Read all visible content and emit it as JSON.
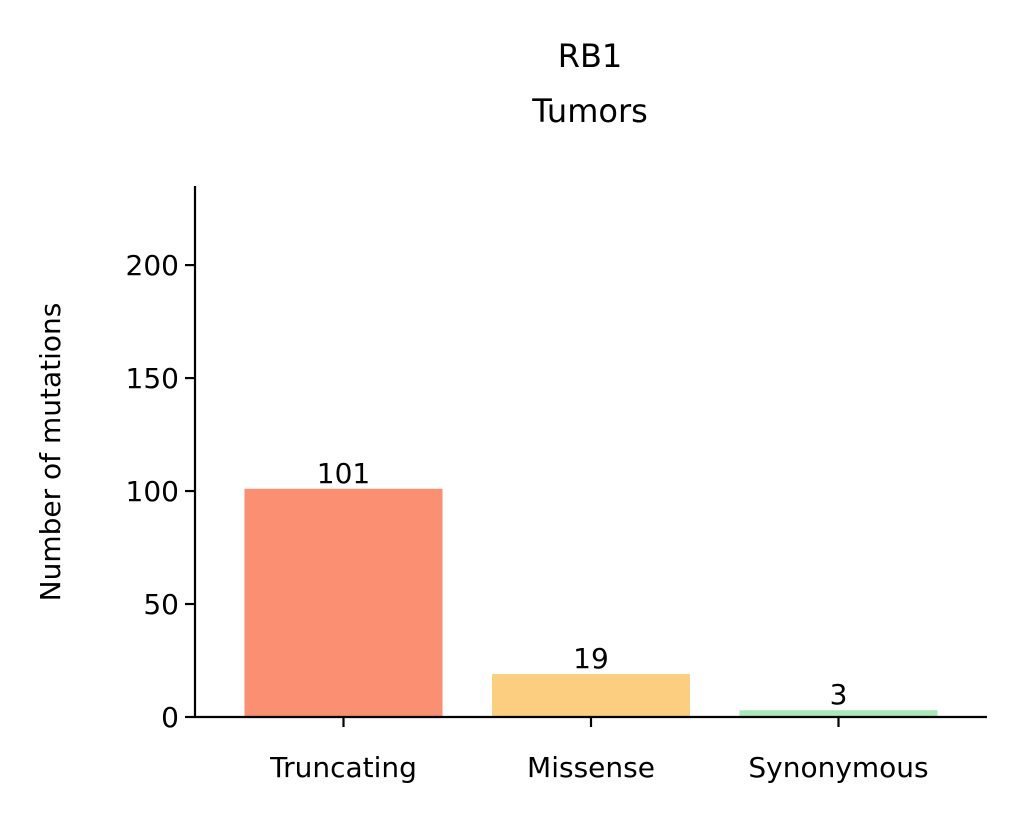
{
  "chart_data": {
    "type": "bar",
    "title_lines": [
      "RB1",
      "Tumors"
    ],
    "xlabel": "",
    "ylabel": "Number of mutations",
    "categories": [
      "Truncating",
      "Missense",
      "Synonymous"
    ],
    "values": [
      101,
      19,
      3
    ],
    "value_labels": [
      "101",
      "19",
      "3"
    ],
    "colors": [
      "#fa8f72",
      "#fbcf7f",
      "#a9e8b8"
    ],
    "ylim": [
      0,
      235
    ],
    "yticks": [
      0,
      50,
      100,
      150,
      200
    ],
    "ytick_labels": [
      "0",
      "50",
      "100",
      "150",
      "200"
    ],
    "grid": false,
    "legend": "none"
  }
}
